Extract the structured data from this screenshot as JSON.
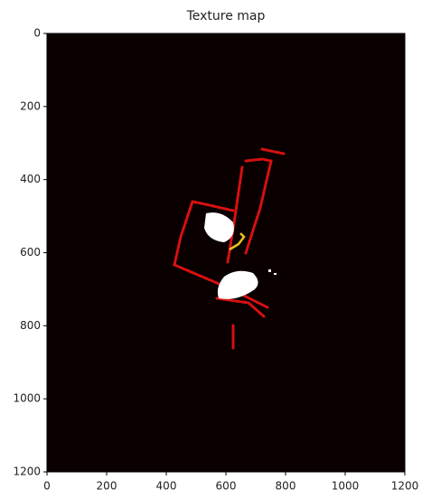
{
  "chart_data": {
    "type": "image",
    "title": "Texture map",
    "xlim": [
      0,
      1200
    ],
    "xticks": [
      0,
      200,
      400,
      600,
      800,
      1000,
      1200
    ],
    "ylim": [
      1200,
      0
    ],
    "yticks": [
      0,
      200,
      400,
      600,
      800,
      1000,
      1200
    ],
    "background": "#0a0000"
  }
}
